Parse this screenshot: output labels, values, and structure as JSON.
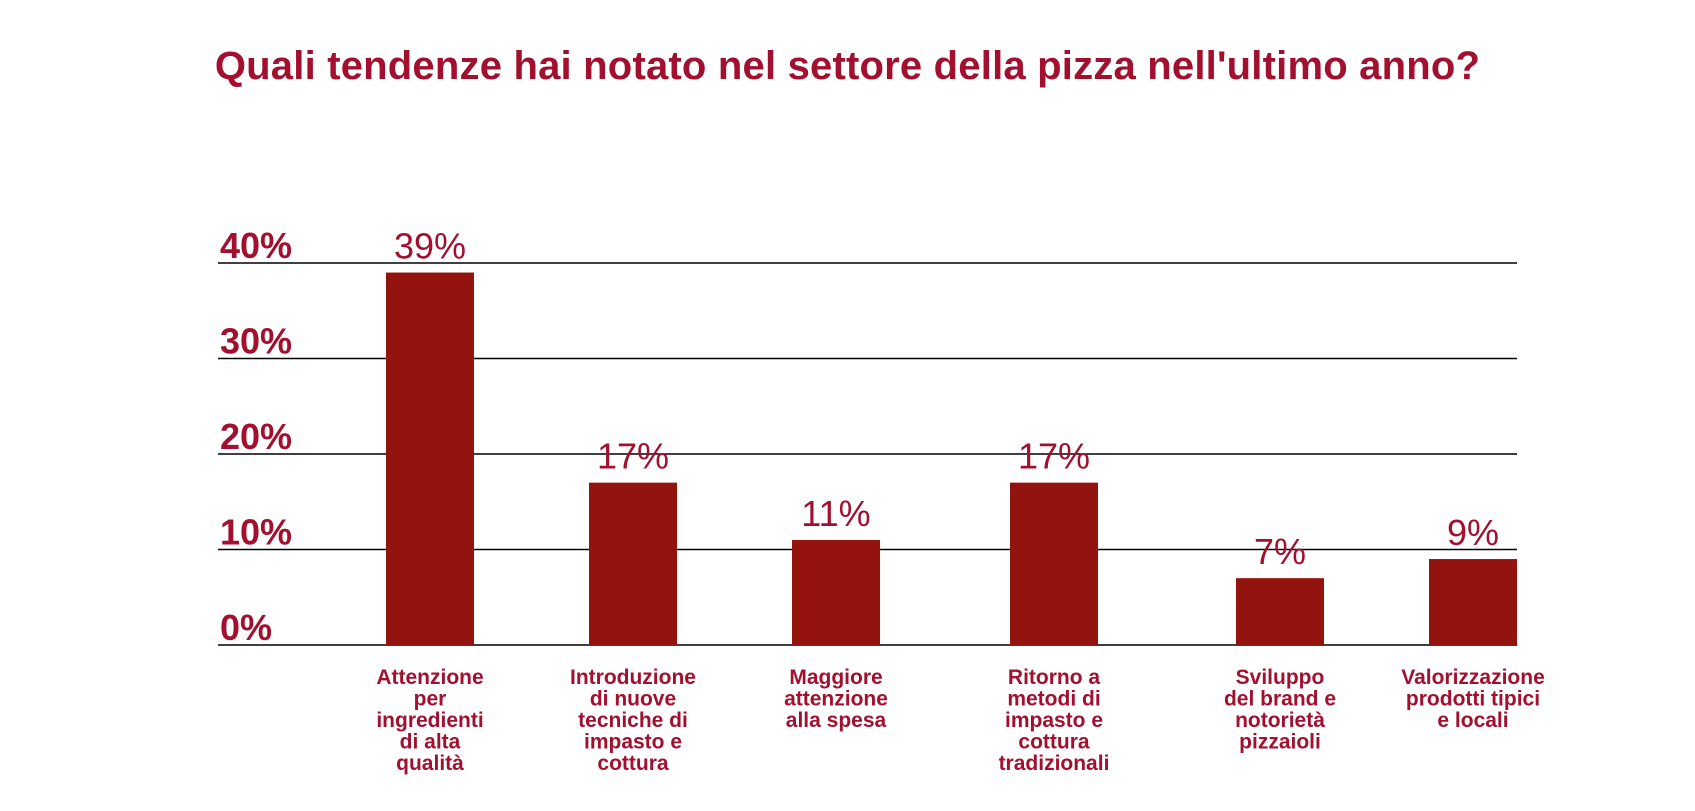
{
  "chart_data": {
    "type": "bar",
    "title": "Quali tendenze hai notato nel settore della pizza nell'ultimo anno?",
    "xlabel": "",
    "ylabel": "",
    "ylim": [
      0,
      40
    ],
    "yticks": [
      0,
      10,
      20,
      30,
      40
    ],
    "ytick_labels": [
      "0%",
      "10%",
      "20%",
      "30%",
      "40%"
    ],
    "grid": true,
    "legend": "none",
    "bar_color": "#93130f",
    "text_color": "#a3102f",
    "categories": [
      "Attenzione per ingredienti di alta qualità",
      "Introduzione di nuove tecniche di impasto e cottura",
      "Maggiore attenzione alla spesa",
      "Ritorno a metodi di impasto e cottura tradizionali",
      "Sviluppo del brand e notorietà pizzaioli",
      "Valorizzazione prodotti tipici e locali"
    ],
    "category_lines": [
      [
        "Attenzione",
        "per",
        "ingredienti",
        "di alta",
        "qualità"
      ],
      [
        "Introduzione",
        "di nuove",
        "tecniche di",
        "impasto e",
        "cottura"
      ],
      [
        "Maggiore",
        "attenzione",
        "alla spesa"
      ],
      [
        "Ritorno a",
        "metodi di",
        "impasto e",
        "cottura",
        "tradizionali"
      ],
      [
        "Sviluppo",
        "del brand e",
        "notorietà",
        "pizzaioli"
      ],
      [
        "Valorizzazione",
        "prodotti tipici",
        "e locali"
      ]
    ],
    "values": [
      39,
      17,
      11,
      17,
      7,
      9
    ],
    "value_labels": [
      "39%",
      "17%",
      "11%",
      "17%",
      "7%",
      "9%"
    ]
  }
}
